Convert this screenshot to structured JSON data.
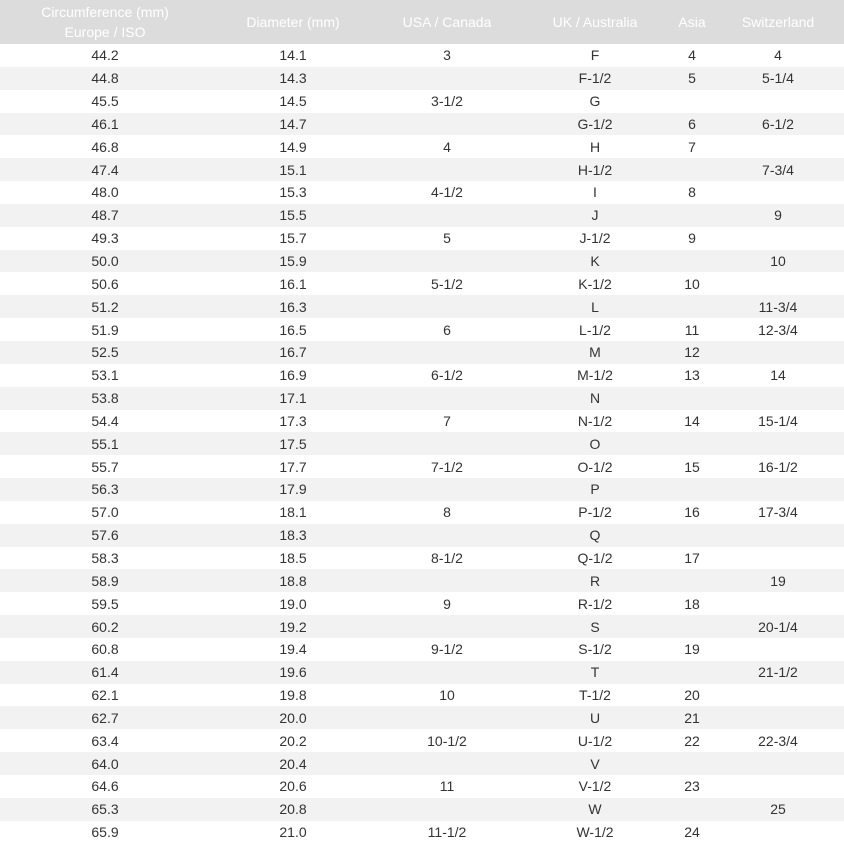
{
  "header": {
    "col1_line1": "Circumference (mm)",
    "col1_line2": "Europe / ISO",
    "col2": "Diameter (mm)",
    "col3": "USA / Canada",
    "col4": "UK / Australia",
    "col5": "Asia",
    "col6": "Switzerland"
  },
  "colors": {
    "header_bg": "#dcdcdc",
    "stripe": "#f2f2f2"
  },
  "rows": [
    [
      "44.2",
      "14.1",
      "3",
      "F",
      "4",
      "4"
    ],
    [
      "44.8",
      "14.3",
      "",
      "F-1/2",
      "5",
      "5-1/4"
    ],
    [
      "45.5",
      "14.5",
      "3-1/2",
      "G",
      "",
      ""
    ],
    [
      "46.1",
      "14.7",
      "",
      "G-1/2",
      "6",
      "6-1/2"
    ],
    [
      "46.8",
      "14.9",
      "4",
      "H",
      "7",
      ""
    ],
    [
      "47.4",
      "15.1",
      "",
      "H-1/2",
      "",
      "7-3/4"
    ],
    [
      "48.0",
      "15.3",
      "4-1/2",
      "I",
      "8",
      ""
    ],
    [
      "48.7",
      "15.5",
      "",
      "J",
      "",
      "9"
    ],
    [
      "49.3",
      "15.7",
      "5",
      "J-1/2",
      "9",
      ""
    ],
    [
      "50.0",
      "15.9",
      "",
      "K",
      "",
      "10"
    ],
    [
      "50.6",
      "16.1",
      "5-1/2",
      "K-1/2",
      "10",
      ""
    ],
    [
      "51.2",
      "16.3",
      "",
      "L",
      "",
      "11-3/4"
    ],
    [
      "51.9",
      "16.5",
      "6",
      "L-1/2",
      "11",
      "12-3/4"
    ],
    [
      "52.5",
      "16.7",
      "",
      "M",
      "12",
      ""
    ],
    [
      "53.1",
      "16.9",
      "6-1/2",
      "M-1/2",
      "13",
      "14"
    ],
    [
      "53.8",
      "17.1",
      "",
      "N",
      "",
      ""
    ],
    [
      "54.4",
      "17.3",
      "7",
      "N-1/2",
      "14",
      "15-1/4"
    ],
    [
      "55.1",
      "17.5",
      "",
      "O",
      "",
      ""
    ],
    [
      "55.7",
      "17.7",
      "7-1/2",
      "O-1/2",
      "15",
      "16-1/2"
    ],
    [
      "56.3",
      "17.9",
      "",
      "P",
      "",
      ""
    ],
    [
      "57.0",
      "18.1",
      "8",
      "P-1/2",
      "16",
      "17-3/4"
    ],
    [
      "57.6",
      "18.3",
      "",
      "Q",
      "",
      ""
    ],
    [
      "58.3",
      "18.5",
      "8-1/2",
      "Q-1/2",
      "17",
      ""
    ],
    [
      "58.9",
      "18.8",
      "",
      "R",
      "",
      "19"
    ],
    [
      "59.5",
      "19.0",
      "9",
      "R-1/2",
      "18",
      ""
    ],
    [
      "60.2",
      "19.2",
      "",
      "S",
      "",
      "20-1/4"
    ],
    [
      "60.8",
      "19.4",
      "9-1/2",
      "S-1/2",
      "19",
      ""
    ],
    [
      "61.4",
      "19.6",
      "",
      "T",
      "",
      "21-1/2"
    ],
    [
      "62.1",
      "19.8",
      "10",
      "T-1/2",
      "20",
      ""
    ],
    [
      "62.7",
      "20.0",
      "",
      "U",
      "21",
      ""
    ],
    [
      "63.4",
      "20.2",
      "10-1/2",
      "U-1/2",
      "22",
      "22-3/4"
    ],
    [
      "64.0",
      "20.4",
      "",
      "V",
      "",
      ""
    ],
    [
      "64.6",
      "20.6",
      "11",
      "V-1/2",
      "23",
      ""
    ],
    [
      "65.3",
      "20.8",
      "",
      "W",
      "",
      "25"
    ],
    [
      "65.9",
      "21.0",
      "11-1/2",
      "W-1/2",
      "24",
      ""
    ]
  ]
}
